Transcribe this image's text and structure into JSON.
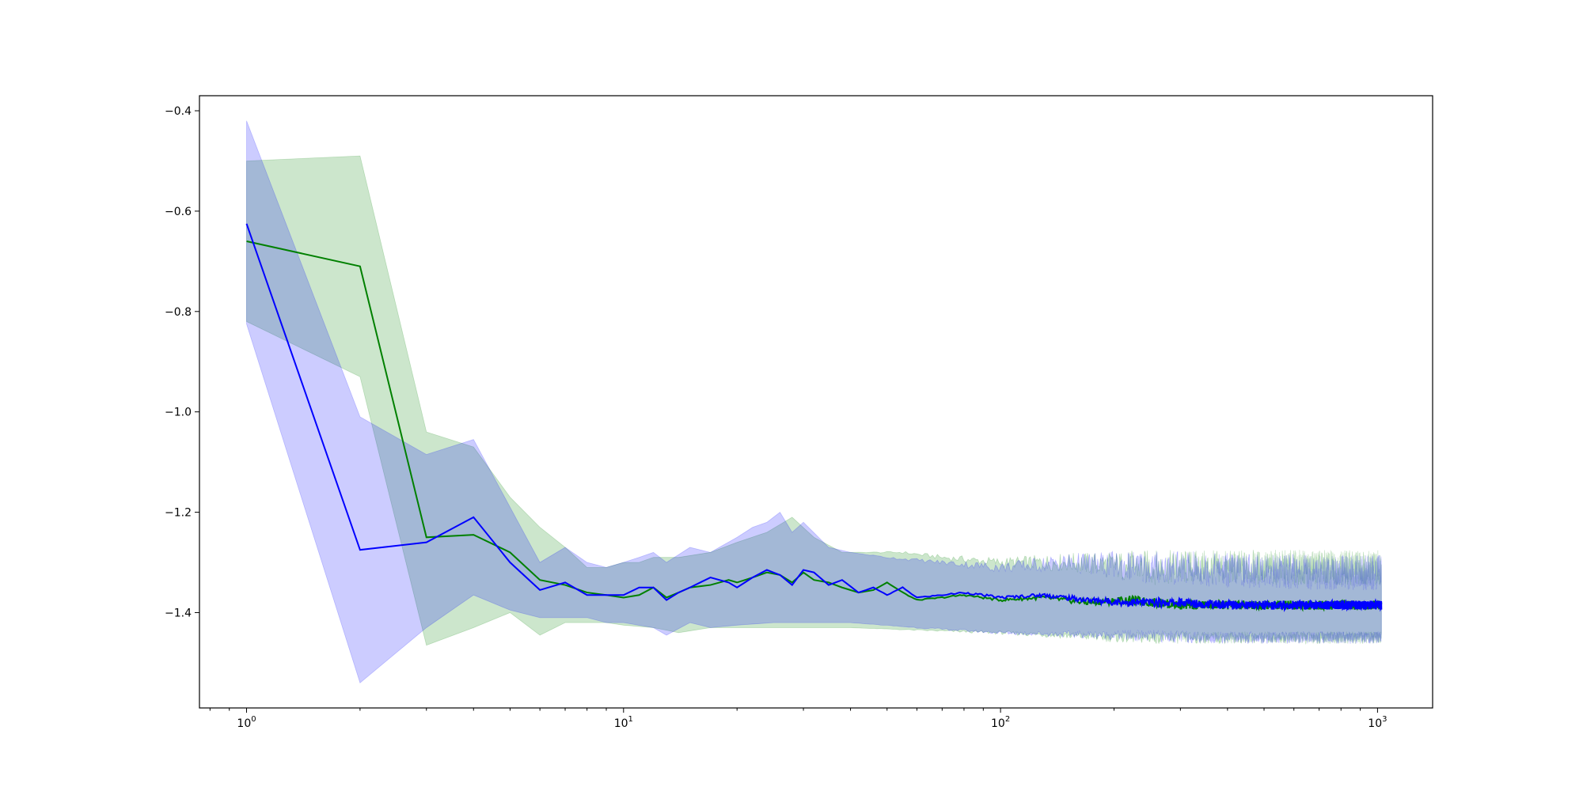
{
  "chart_data": {
    "type": "line",
    "title": "",
    "xlabel": "",
    "ylabel": "",
    "xscale": "log",
    "xlim": [
      0.75,
      1400
    ],
    "ylim": [
      -1.59,
      -0.37
    ],
    "x_range": [
      1,
      1024
    ],
    "grid": false,
    "legend": "none",
    "x_tick_labels": [
      {
        "value": 1,
        "mantissa": "10",
        "exponent": "0"
      },
      {
        "value": 10,
        "mantissa": "10",
        "exponent": "1"
      },
      {
        "value": 100,
        "mantissa": "10",
        "exponent": "2"
      },
      {
        "value": 1000,
        "mantissa": "10",
        "exponent": "3"
      }
    ],
    "y_tick_labels": [
      {
        "value": -0.4,
        "label": "−0.4"
      },
      {
        "value": -0.6,
        "label": "−0.6"
      },
      {
        "value": -0.8,
        "label": "−0.8"
      },
      {
        "value": -1.0,
        "label": "−1.0"
      },
      {
        "value": -1.2,
        "label": "−1.2"
      },
      {
        "value": -1.4,
        "label": "−1.4"
      }
    ],
    "series": [
      {
        "color": "#008000",
        "band_color": "#008000",
        "band_opacity": 0.2,
        "mean": [
          [
            1,
            -0.66
          ],
          [
            2,
            -0.71
          ],
          [
            3,
            -1.25
          ],
          [
            4,
            -1.245
          ],
          [
            5,
            -1.28
          ],
          [
            6,
            -1.335
          ],
          [
            7,
            -1.345
          ],
          [
            8,
            -1.36
          ],
          [
            9,
            -1.365
          ],
          [
            10,
            -1.37
          ],
          [
            11,
            -1.365
          ],
          [
            12,
            -1.35
          ],
          [
            13,
            -1.37
          ],
          [
            14,
            -1.36
          ],
          [
            15,
            -1.35
          ],
          [
            17,
            -1.345
          ],
          [
            19,
            -1.335
          ],
          [
            20,
            -1.34
          ],
          [
            22,
            -1.33
          ],
          [
            24,
            -1.32
          ],
          [
            26,
            -1.325
          ],
          [
            28,
            -1.34
          ],
          [
            30,
            -1.32
          ],
          [
            32,
            -1.335
          ],
          [
            35,
            -1.34
          ],
          [
            38,
            -1.35
          ],
          [
            42,
            -1.36
          ],
          [
            46,
            -1.355
          ],
          [
            50,
            -1.34
          ],
          [
            55,
            -1.36
          ],
          [
            60,
            -1.375
          ],
          [
            70,
            -1.37
          ],
          [
            80,
            -1.365
          ],
          [
            100,
            -1.375
          ],
          [
            130,
            -1.37
          ],
          [
            170,
            -1.38
          ],
          [
            220,
            -1.375
          ],
          [
            300,
            -1.385
          ],
          [
            400,
            -1.385
          ],
          [
            550,
            -1.385
          ],
          [
            750,
            -1.385
          ],
          [
            1024,
            -1.385
          ]
        ],
        "upper": [
          [
            1,
            -0.5
          ],
          [
            2,
            -0.49
          ],
          [
            3,
            -1.04
          ],
          [
            4,
            -1.07
          ],
          [
            5,
            -1.17
          ],
          [
            6,
            -1.23
          ],
          [
            7,
            -1.27
          ],
          [
            8,
            -1.31
          ],
          [
            9,
            -1.31
          ],
          [
            10,
            -1.3
          ],
          [
            11,
            -1.3
          ],
          [
            12,
            -1.29
          ],
          [
            14,
            -1.29
          ],
          [
            17,
            -1.28
          ],
          [
            20,
            -1.26
          ],
          [
            24,
            -1.24
          ],
          [
            28,
            -1.21
          ],
          [
            32,
            -1.25
          ],
          [
            38,
            -1.28
          ],
          [
            46,
            -1.28
          ],
          [
            55,
            -1.28
          ],
          [
            70,
            -1.29
          ],
          [
            100,
            -1.3
          ],
          [
            150,
            -1.3
          ],
          [
            250,
            -1.31
          ],
          [
            400,
            -1.31
          ],
          [
            700,
            -1.31
          ],
          [
            1024,
            -1.31
          ]
        ],
        "lower": [
          [
            1,
            -0.82
          ],
          [
            2,
            -0.93
          ],
          [
            3,
            -1.465
          ],
          [
            4,
            -1.43
          ],
          [
            5,
            -1.4
          ],
          [
            6,
            -1.445
          ],
          [
            7,
            -1.42
          ],
          [
            8,
            -1.42
          ],
          [
            9,
            -1.42
          ],
          [
            10,
            -1.425
          ],
          [
            12,
            -1.43
          ],
          [
            14,
            -1.44
          ],
          [
            17,
            -1.43
          ],
          [
            20,
            -1.43
          ],
          [
            24,
            -1.43
          ],
          [
            30,
            -1.43
          ],
          [
            40,
            -1.43
          ],
          [
            60,
            -1.435
          ],
          [
            100,
            -1.44
          ],
          [
            200,
            -1.45
          ],
          [
            400,
            -1.45
          ],
          [
            700,
            -1.45
          ],
          [
            1024,
            -1.45
          ]
        ]
      },
      {
        "color": "#0000ff",
        "band_color": "#0000ff",
        "band_opacity": 0.2,
        "mean": [
          [
            1,
            -0.625
          ],
          [
            2,
            -1.275
          ],
          [
            3,
            -1.26
          ],
          [
            4,
            -1.21
          ],
          [
            5,
            -1.3
          ],
          [
            6,
            -1.355
          ],
          [
            7,
            -1.34
          ],
          [
            8,
            -1.365
          ],
          [
            9,
            -1.365
          ],
          [
            10,
            -1.365
          ],
          [
            11,
            -1.35
          ],
          [
            12,
            -1.35
          ],
          [
            13,
            -1.375
          ],
          [
            14,
            -1.36
          ],
          [
            15,
            -1.35
          ],
          [
            17,
            -1.33
          ],
          [
            19,
            -1.34
          ],
          [
            20,
            -1.35
          ],
          [
            22,
            -1.33
          ],
          [
            24,
            -1.315
          ],
          [
            26,
            -1.325
          ],
          [
            28,
            -1.345
          ],
          [
            30,
            -1.315
          ],
          [
            32,
            -1.32
          ],
          [
            35,
            -1.345
          ],
          [
            38,
            -1.335
          ],
          [
            42,
            -1.36
          ],
          [
            46,
            -1.35
          ],
          [
            50,
            -1.365
          ],
          [
            55,
            -1.35
          ],
          [
            60,
            -1.37
          ],
          [
            70,
            -1.365
          ],
          [
            80,
            -1.36
          ],
          [
            100,
            -1.37
          ],
          [
            130,
            -1.365
          ],
          [
            170,
            -1.375
          ],
          [
            220,
            -1.38
          ],
          [
            300,
            -1.38
          ],
          [
            400,
            -1.385
          ],
          [
            550,
            -1.385
          ],
          [
            750,
            -1.385
          ],
          [
            1024,
            -1.385
          ]
        ],
        "upper": [
          [
            1,
            -0.42
          ],
          [
            2,
            -1.01
          ],
          [
            3,
            -1.085
          ],
          [
            4,
            -1.055
          ],
          [
            5,
            -1.19
          ],
          [
            6,
            -1.3
          ],
          [
            7,
            -1.27
          ],
          [
            8,
            -1.3
          ],
          [
            9,
            -1.31
          ],
          [
            10,
            -1.3
          ],
          [
            11,
            -1.29
          ],
          [
            12,
            -1.28
          ],
          [
            13,
            -1.3
          ],
          [
            15,
            -1.27
          ],
          [
            17,
            -1.28
          ],
          [
            20,
            -1.25
          ],
          [
            22,
            -1.23
          ],
          [
            24,
            -1.22
          ],
          [
            26,
            -1.2
          ],
          [
            28,
            -1.24
          ],
          [
            30,
            -1.22
          ],
          [
            35,
            -1.27
          ],
          [
            40,
            -1.28
          ],
          [
            50,
            -1.29
          ],
          [
            70,
            -1.3
          ],
          [
            100,
            -1.31
          ],
          [
            150,
            -1.3
          ],
          [
            250,
            -1.31
          ],
          [
            400,
            -1.315
          ],
          [
            700,
            -1.32
          ],
          [
            1024,
            -1.32
          ]
        ],
        "lower": [
          [
            1,
            -0.825
          ],
          [
            2,
            -1.54
          ],
          [
            3,
            -1.43
          ],
          [
            4,
            -1.365
          ],
          [
            5,
            -1.395
          ],
          [
            6,
            -1.41
          ],
          [
            7,
            -1.41
          ],
          [
            8,
            -1.41
          ],
          [
            9,
            -1.42
          ],
          [
            10,
            -1.42
          ],
          [
            12,
            -1.43
          ],
          [
            13,
            -1.445
          ],
          [
            15,
            -1.42
          ],
          [
            17,
            -1.43
          ],
          [
            20,
            -1.425
          ],
          [
            25,
            -1.42
          ],
          [
            30,
            -1.42
          ],
          [
            40,
            -1.42
          ],
          [
            60,
            -1.43
          ],
          [
            100,
            -1.44
          ],
          [
            200,
            -1.445
          ],
          [
            400,
            -1.45
          ],
          [
            700,
            -1.45
          ],
          [
            1024,
            -1.45
          ]
        ]
      }
    ]
  }
}
